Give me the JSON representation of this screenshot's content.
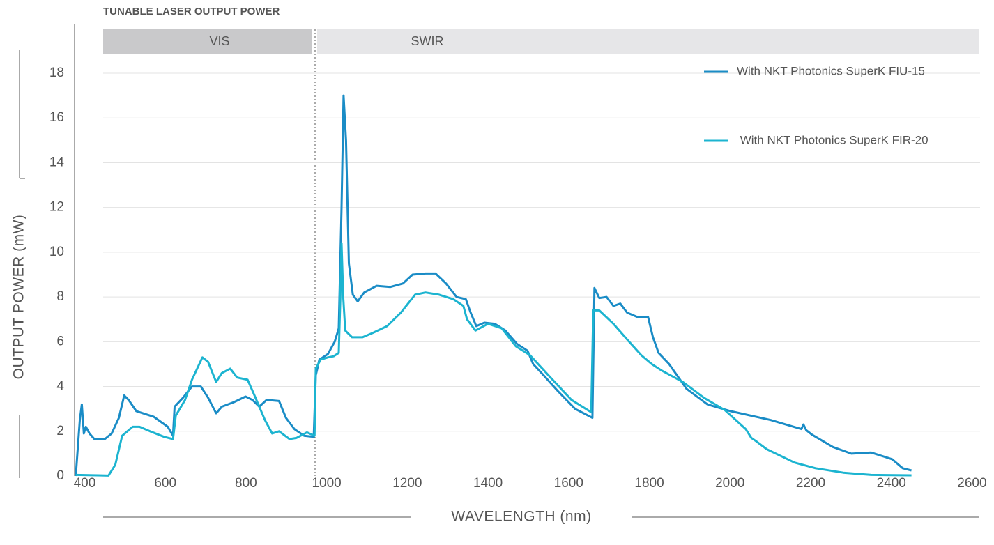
{
  "chart_data": {
    "type": "line",
    "title": "TUNABLE LASER OUTPUT POWER",
    "bands": [
      "VIS",
      "SWIR"
    ],
    "xlabel": "WAVELENGTH (nm)",
    "ylabel": "OUTPUT POWER (mW)",
    "xlim": [
      375,
      2620
    ],
    "ylim": [
      0,
      18
    ],
    "xticks": [
      400,
      600,
      800,
      1000,
      1200,
      1400,
      1600,
      1800,
      2000,
      2200,
      2400,
      2600
    ],
    "yticks": [
      0,
      2,
      4,
      6,
      8,
      10,
      12,
      14,
      16,
      18
    ],
    "grid": true,
    "legend": "upper right",
    "series": [
      {
        "name": "With NKT Photonics SuperK FIU-15",
        "color": "#1a8cc6",
        "x": [
          378,
          388,
          393,
          398,
          403,
          412,
          424,
          450,
          467,
          485,
          498,
          509,
          528,
          571,
          606,
          619,
          623,
          644,
          666,
          688,
          706,
          726,
          740,
          770,
          799,
          816,
          833,
          851,
          882,
          899,
          920,
          944,
          968,
          973,
          982,
          1003,
          1020,
          1030,
          1037,
          1042,
          1048,
          1055,
          1065,
          1077,
          1093,
          1124,
          1158,
          1189,
          1213,
          1245,
          1270,
          1296,
          1322,
          1345,
          1357,
          1371,
          1391,
          1417,
          1443,
          1472,
          1498,
          1512,
          1538,
          1573,
          1616,
          1659,
          1664,
          1676,
          1694,
          1711,
          1728,
          1745,
          1771,
          1797,
          1809,
          1823,
          1849,
          1892,
          1944,
          2001,
          2101,
          2177,
          2182,
          2189,
          2203,
          2255,
          2301,
          2350,
          2402,
          2428,
          2450
        ],
        "values": [
          0,
          2.5,
          3.2,
          1.9,
          2.2,
          1.9,
          1.65,
          1.65,
          1.9,
          2.6,
          3.6,
          3.4,
          2.9,
          2.65,
          2.2,
          1.8,
          3.1,
          3.5,
          4.0,
          4.0,
          3.5,
          2.8,
          3.1,
          3.3,
          3.55,
          3.4,
          3.1,
          3.4,
          3.35,
          2.6,
          2.1,
          1.8,
          1.75,
          4.5,
          5.2,
          5.45,
          6.0,
          6.6,
          12,
          17.0,
          15,
          9.5,
          8.1,
          7.8,
          8.2,
          8.5,
          8.45,
          8.6,
          9.0,
          9.05,
          9.05,
          8.6,
          8.0,
          7.9,
          7.3,
          6.7,
          6.85,
          6.8,
          6.5,
          5.9,
          5.6,
          5.0,
          4.5,
          3.8,
          3.0,
          2.6,
          8.4,
          7.95,
          8.0,
          7.6,
          7.7,
          7.3,
          7.1,
          7.1,
          6.2,
          5.5,
          5.0,
          3.9,
          3.2,
          2.9,
          2.5,
          2.1,
          2.3,
          2.05,
          1.85,
          1.3,
          1.0,
          1.05,
          0.75,
          0.35,
          0.25
        ]
      },
      {
        "name": " With NKT Photonics SuperK FIR-20",
        "color": "#1cb4d0",
        "x": [
          378,
          433,
          459,
          476,
          493,
          519,
          536,
          562,
          597,
          619,
          626,
          649,
          666,
          692,
          706,
          726,
          740,
          761,
          778,
          804,
          821,
          847,
          865,
          882,
          908,
          925,
          951,
          970,
          973,
          985,
          1003,
          1017,
          1030,
          1034,
          1037,
          1041,
          1046,
          1063,
          1089,
          1115,
          1150,
          1184,
          1219,
          1245,
          1279,
          1314,
          1339,
          1348,
          1369,
          1400,
          1434,
          1469,
          1504,
          1555,
          1607,
          1656,
          1661,
          1676,
          1711,
          1745,
          1780,
          1806,
          1832,
          1883,
          1935,
          1987,
          2039,
          2053,
          2065,
          2091,
          2160,
          2212,
          2281,
          2350,
          2450
        ],
        "values": [
          0.05,
          0.03,
          0.02,
          0.5,
          1.8,
          2.2,
          2.2,
          2.0,
          1.75,
          1.65,
          2.7,
          3.4,
          4.3,
          5.3,
          5.1,
          4.2,
          4.6,
          4.8,
          4.4,
          4.3,
          3.6,
          2.5,
          1.9,
          2.0,
          1.65,
          1.7,
          1.95,
          1.8,
          4.8,
          5.2,
          5.3,
          5.35,
          5.5,
          8,
          10.4,
          8,
          6.5,
          6.2,
          6.2,
          6.4,
          6.7,
          7.3,
          8.1,
          8.2,
          8.1,
          7.9,
          7.6,
          7.0,
          6.5,
          6.8,
          6.6,
          5.8,
          5.4,
          4.4,
          3.4,
          2.85,
          7.4,
          7.4,
          6.8,
          6.1,
          5.4,
          5.0,
          4.7,
          4.2,
          3.5,
          2.95,
          2.1,
          1.7,
          1.55,
          1.2,
          0.6,
          0.35,
          0.15,
          0.05,
          0.03
        ]
      }
    ]
  }
}
